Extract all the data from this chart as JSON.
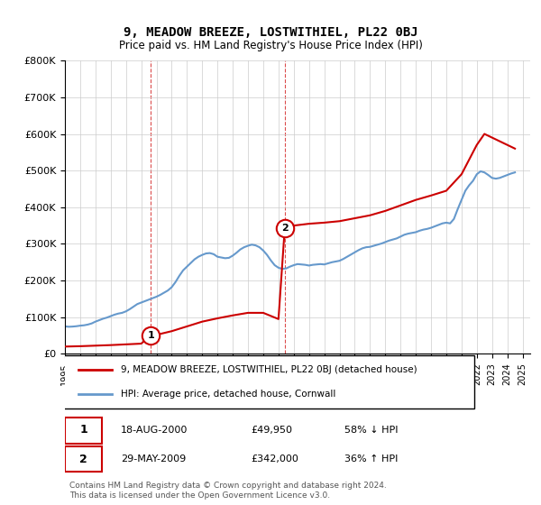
{
  "title": "9, MEADOW BREEZE, LOSTWITHIEL, PL22 0BJ",
  "subtitle": "Price paid vs. HM Land Registry's House Price Index (HPI)",
  "ylabel": "",
  "xlabel": "",
  "ylim": [
    0,
    800000
  ],
  "xlim_start": 1995.0,
  "xlim_end": 2025.5,
  "yticks": [
    0,
    100000,
    200000,
    300000,
    400000,
    500000,
    600000,
    700000,
    800000
  ],
  "ytick_labels": [
    "£0",
    "£100K",
    "£200K",
    "£300K",
    "£400K",
    "£500K",
    "£600K",
    "£700K",
    "£800K"
  ],
  "transaction1": {
    "date_num": 2000.63,
    "price": 49950,
    "label": "1"
  },
  "transaction2": {
    "date_num": 2009.41,
    "price": 342000,
    "label": "2"
  },
  "red_line_color": "#cc0000",
  "blue_line_color": "#6699cc",
  "marker_color": "#cc0000",
  "grid_color": "#cccccc",
  "background_color": "#ffffff",
  "legend_label_red": "9, MEADOW BREEZE, LOSTWITHIEL, PL22 0BJ (detached house)",
  "legend_label_blue": "HPI: Average price, detached house, Cornwall",
  "table_row1": [
    "1",
    "18-AUG-2000",
    "£49,950",
    "58% ↓ HPI"
  ],
  "table_row2": [
    "2",
    "29-MAY-2009",
    "£342,000",
    "36% ↑ HPI"
  ],
  "footnote": "Contains HM Land Registry data © Crown copyright and database right 2024.\nThis data is licensed under the Open Government Licence v3.0.",
  "vline1_x": 2000.63,
  "vline2_x": 2009.41,
  "hpi_data": {
    "x": [
      1995.0,
      1995.25,
      1995.5,
      1995.75,
      1996.0,
      1996.25,
      1996.5,
      1996.75,
      1997.0,
      1997.25,
      1997.5,
      1997.75,
      1998.0,
      1998.25,
      1998.5,
      1998.75,
      1999.0,
      1999.25,
      1999.5,
      1999.75,
      2000.0,
      2000.25,
      2000.5,
      2000.75,
      2001.0,
      2001.25,
      2001.5,
      2001.75,
      2002.0,
      2002.25,
      2002.5,
      2002.75,
      2003.0,
      2003.25,
      2003.5,
      2003.75,
      2004.0,
      2004.25,
      2004.5,
      2004.75,
      2005.0,
      2005.25,
      2005.5,
      2005.75,
      2006.0,
      2006.25,
      2006.5,
      2006.75,
      2007.0,
      2007.25,
      2007.5,
      2007.75,
      2008.0,
      2008.25,
      2008.5,
      2008.75,
      2009.0,
      2009.25,
      2009.5,
      2009.75,
      2010.0,
      2010.25,
      2010.5,
      2010.75,
      2011.0,
      2011.25,
      2011.5,
      2011.75,
      2012.0,
      2012.25,
      2012.5,
      2012.75,
      2013.0,
      2013.25,
      2013.5,
      2013.75,
      2014.0,
      2014.25,
      2014.5,
      2014.75,
      2015.0,
      2015.25,
      2015.5,
      2015.75,
      2016.0,
      2016.25,
      2016.5,
      2016.75,
      2017.0,
      2017.25,
      2017.5,
      2017.75,
      2018.0,
      2018.25,
      2018.5,
      2018.75,
      2019.0,
      2019.25,
      2019.5,
      2019.75,
      2020.0,
      2020.25,
      2020.5,
      2020.75,
      2021.0,
      2021.25,
      2021.5,
      2021.75,
      2022.0,
      2022.25,
      2022.5,
      2022.75,
      2023.0,
      2023.25,
      2023.5,
      2023.75,
      2024.0,
      2024.25,
      2024.5
    ],
    "y": [
      75000,
      74000,
      74500,
      75500,
      77000,
      78000,
      80000,
      83000,
      88000,
      92000,
      96000,
      99000,
      103000,
      107000,
      110000,
      112000,
      116000,
      122000,
      129000,
      136000,
      140000,
      144000,
      148000,
      152000,
      156000,
      161000,
      167000,
      173000,
      182000,
      196000,
      213000,
      228000,
      238000,
      248000,
      258000,
      265000,
      270000,
      274000,
      275000,
      272000,
      265000,
      263000,
      261000,
      262000,
      268000,
      276000,
      285000,
      291000,
      295000,
      298000,
      296000,
      291000,
      282000,
      270000,
      255000,
      242000,
      235000,
      232000,
      233000,
      238000,
      242000,
      245000,
      244000,
      243000,
      241000,
      243000,
      244000,
      245000,
      244000,
      247000,
      250000,
      252000,
      254000,
      259000,
      265000,
      271000,
      277000,
      283000,
      288000,
      291000,
      292000,
      295000,
      298000,
      301000,
      305000,
      309000,
      312000,
      315000,
      320000,
      325000,
      328000,
      330000,
      332000,
      336000,
      339000,
      341000,
      344000,
      348000,
      352000,
      356000,
      358000,
      356000,
      368000,
      395000,
      420000,
      445000,
      460000,
      472000,
      490000,
      498000,
      495000,
      488000,
      480000,
      478000,
      480000,
      484000,
      488000,
      492000,
      495000
    ]
  },
  "red_data": {
    "x": [
      1995.0,
      1996.0,
      1997.0,
      1998.0,
      1999.0,
      2000.0,
      2000.63,
      2001.0,
      2002.0,
      2003.0,
      2004.0,
      2005.0,
      2006.0,
      2007.0,
      2008.0,
      2009.0,
      2009.41,
      2010.0,
      2011.0,
      2012.0,
      2013.0,
      2014.0,
      2015.0,
      2016.0,
      2017.0,
      2018.0,
      2019.0,
      2020.0,
      2021.0,
      2022.0,
      2022.5,
      2023.0,
      2023.5,
      2024.0,
      2024.5
    ],
    "y": [
      20000,
      21000,
      22500,
      24000,
      26000,
      28000,
      49950,
      52000,
      62000,
      75000,
      88000,
      97000,
      105000,
      112000,
      112000,
      95000,
      342000,
      350000,
      355000,
      358000,
      362000,
      370000,
      378000,
      390000,
      405000,
      420000,
      432000,
      445000,
      490000,
      570000,
      600000,
      590000,
      580000,
      570000,
      560000
    ]
  }
}
